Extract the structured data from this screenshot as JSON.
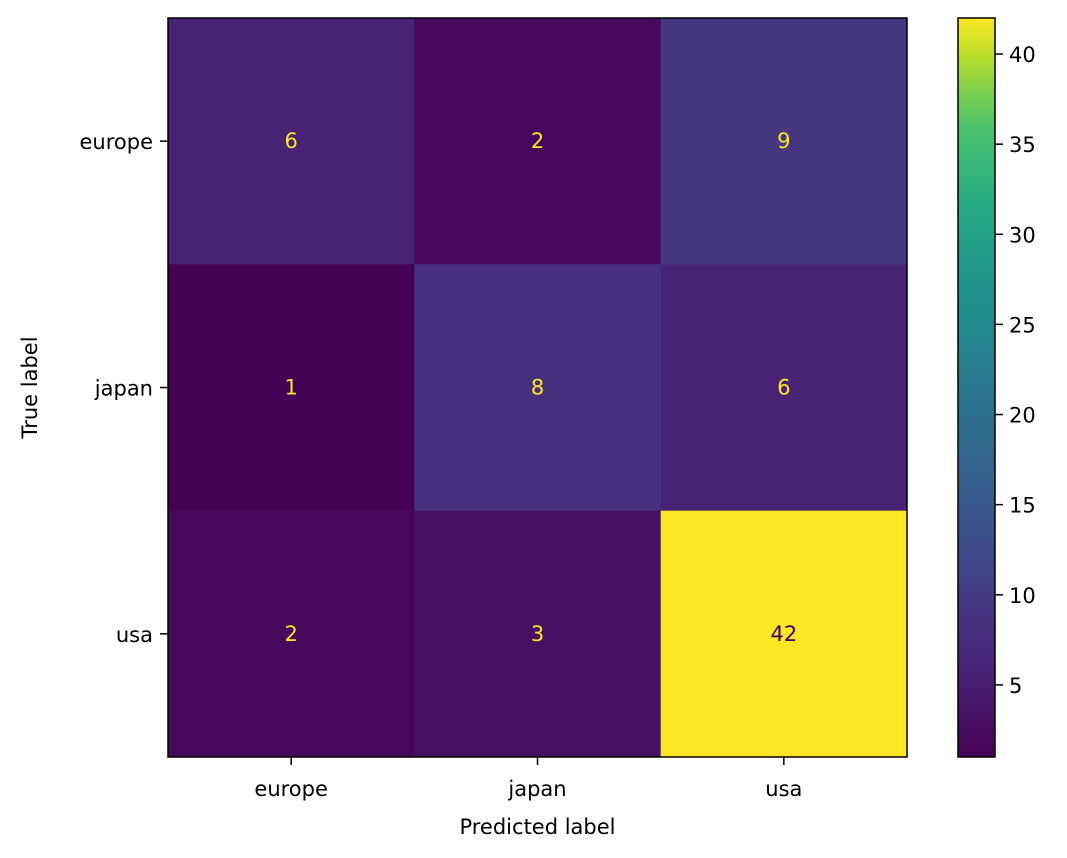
{
  "chart_data": {
    "type": "heatmap",
    "title": "",
    "xlabel": "Predicted label",
    "ylabel": "True label",
    "x_categories": [
      "europe",
      "japan",
      "usa"
    ],
    "y_categories": [
      "europe",
      "japan",
      "usa"
    ],
    "values": [
      [
        6,
        2,
        9
      ],
      [
        1,
        8,
        6
      ],
      [
        2,
        3,
        42
      ]
    ],
    "colormap": "viridis",
    "colorbar": {
      "vmin": 1,
      "vmax": 42,
      "ticks": [
        5,
        10,
        15,
        20,
        25,
        30,
        35,
        40
      ],
      "tick_labels": [
        "5",
        "10",
        "15",
        "20",
        "25",
        "30",
        "35",
        "40"
      ]
    },
    "text_colors": {
      "low": "#fde725",
      "high": "#440154"
    },
    "grid": false,
    "legend": "colorbar-right"
  }
}
